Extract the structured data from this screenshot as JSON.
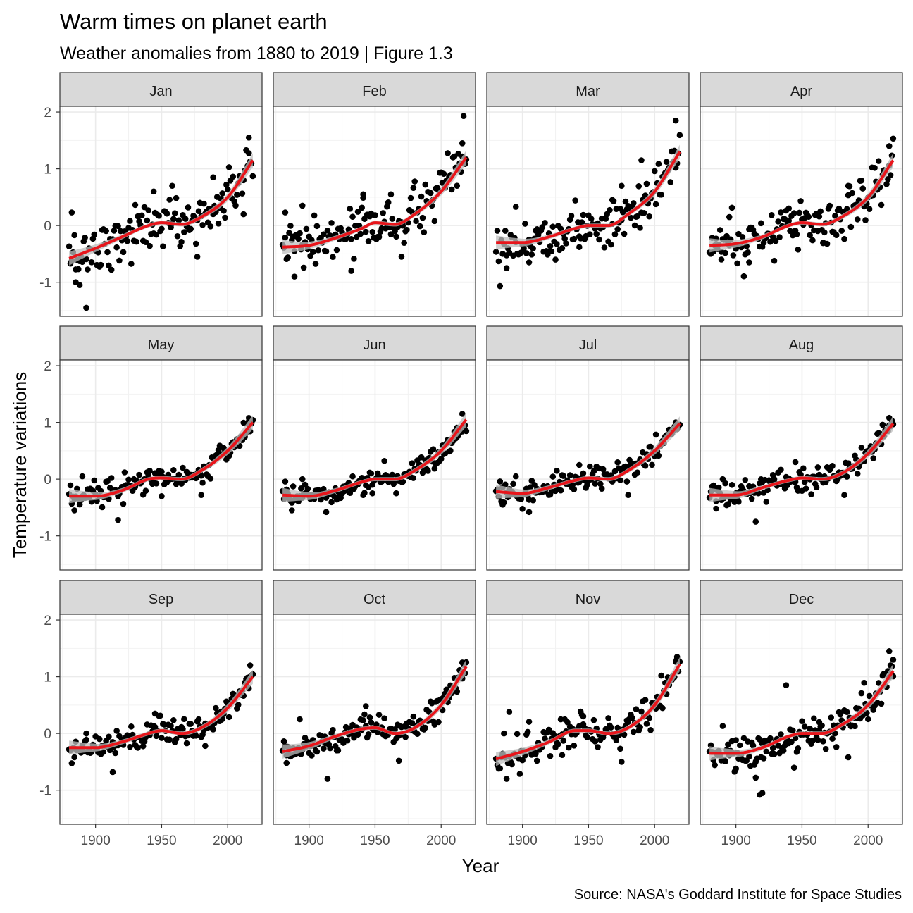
{
  "chart_data": {
    "type": "scatter",
    "title": "Warm times on planet earth",
    "subtitle": "Weather anomalies from 1880 to 2019 | Figure 1.3",
    "caption": "Source: NASA's Goddard Institute for Space Studies",
    "xlabel": "Year",
    "ylabel": "Temperature variations",
    "xlim": [
      1873,
      2026
    ],
    "ylim": [
      -1.6,
      2.1
    ],
    "x_ticks": [
      1900,
      1950,
      2000
    ],
    "y_ticks": [
      -1,
      0,
      1,
      2
    ],
    "grid": true,
    "point_color": "#000000",
    "smooth_color": "#e8151b",
    "ribbon_color": "#bdbdbd",
    "facets": [
      {
        "month": "Jan",
        "trend": [
          [
            1880,
            -0.58
          ],
          [
            1900,
            -0.4
          ],
          [
            1920,
            -0.2
          ],
          [
            1940,
            0.0
          ],
          [
            1950,
            0.05
          ],
          [
            1965,
            0.02
          ],
          [
            1980,
            0.15
          ],
          [
            2000,
            0.5
          ],
          [
            2019,
            1.15
          ]
        ],
        "extremes": [
          [
            1882,
            0.23
          ],
          [
            1885,
            -1.0
          ],
          [
            1888,
            -1.05
          ],
          [
            1893,
            -1.45
          ],
          [
            1944,
            0.6
          ],
          [
            1958,
            0.7
          ],
          [
            1977,
            -0.55
          ],
          [
            1989,
            0.85
          ],
          [
            2012,
            0.2
          ],
          [
            2016,
            1.55
          ]
        ]
      },
      {
        "month": "Feb",
        "trend": [
          [
            1880,
            -0.38
          ],
          [
            1900,
            -0.35
          ],
          [
            1920,
            -0.22
          ],
          [
            1940,
            -0.05
          ],
          [
            1950,
            0.05
          ],
          [
            1965,
            0.02
          ],
          [
            1980,
            0.2
          ],
          [
            2000,
            0.6
          ],
          [
            2019,
            1.2
          ]
        ],
        "extremes": [
          [
            1882,
            0.23
          ],
          [
            1889,
            -0.9
          ],
          [
            1895,
            0.35
          ],
          [
            1932,
            -0.8
          ],
          [
            1941,
            0.55
          ],
          [
            1962,
            0.55
          ],
          [
            1970,
            -0.55
          ],
          [
            2017,
            1.93
          ],
          [
            2016,
            1.45
          ]
        ]
      },
      {
        "month": "Mar",
        "trend": [
          [
            1880,
            -0.3
          ],
          [
            1900,
            -0.3
          ],
          [
            1920,
            -0.2
          ],
          [
            1940,
            -0.05
          ],
          [
            1950,
            0.0
          ],
          [
            1965,
            0.0
          ],
          [
            1980,
            0.2
          ],
          [
            2000,
            0.6
          ],
          [
            2019,
            1.3
          ]
        ],
        "extremes": [
          [
            1888,
            -0.75
          ],
          [
            1905,
            -0.65
          ],
          [
            1895,
            0.33
          ],
          [
            1943,
            -0.38
          ],
          [
            1968,
            0.45
          ],
          [
            1975,
            0.7
          ],
          [
            1990,
            1.15
          ],
          [
            2016,
            1.85
          ]
        ]
      },
      {
        "month": "Apr",
        "trend": [
          [
            1880,
            -0.35
          ],
          [
            1900,
            -0.32
          ],
          [
            1920,
            -0.2
          ],
          [
            1940,
            0.0
          ],
          [
            1950,
            0.05
          ],
          [
            1965,
            0.02
          ],
          [
            1980,
            0.15
          ],
          [
            2000,
            0.5
          ],
          [
            2019,
            1.15
          ]
        ],
        "extremes": [
          [
            1889,
            -0.6
          ],
          [
            1910,
            -0.65
          ],
          [
            1895,
            0.15
          ],
          [
            1940,
            0.3
          ],
          [
            1966,
            -0.3
          ],
          [
            1985,
            0.7
          ],
          [
            2016,
            1.4
          ]
        ]
      },
      {
        "month": "May",
        "trend": [
          [
            1880,
            -0.3
          ],
          [
            1900,
            -0.3
          ],
          [
            1920,
            -0.2
          ],
          [
            1940,
            0.0
          ],
          [
            1950,
            0.02
          ],
          [
            1965,
            0.0
          ],
          [
            1980,
            0.15
          ],
          [
            2000,
            0.5
          ],
          [
            2019,
            1.0
          ]
        ],
        "extremes": [
          [
            1884,
            -0.55
          ],
          [
            1917,
            -0.72
          ],
          [
            1890,
            0.05
          ],
          [
            1950,
            -0.3
          ],
          [
            1980,
            -0.28
          ],
          [
            2016,
            1.02
          ]
        ]
      },
      {
        "month": "Jun",
        "trend": [
          [
            1880,
            -0.28
          ],
          [
            1900,
            -0.3
          ],
          [
            1920,
            -0.2
          ],
          [
            1940,
            -0.05
          ],
          [
            1950,
            0.0
          ],
          [
            1965,
            0.0
          ],
          [
            1980,
            0.15
          ],
          [
            2000,
            0.5
          ],
          [
            2019,
            1.05
          ]
        ],
        "extremes": [
          [
            1887,
            -0.55
          ],
          [
            1913,
            -0.58
          ],
          [
            1895,
            0.0
          ],
          [
            1948,
            -0.25
          ],
          [
            2016,
            1.15
          ]
        ]
      },
      {
        "month": "Jul",
        "trend": [
          [
            1880,
            -0.22
          ],
          [
            1900,
            -0.25
          ],
          [
            1920,
            -0.15
          ],
          [
            1940,
            -0.02
          ],
          [
            1950,
            0.02
          ],
          [
            1965,
            0.0
          ],
          [
            1980,
            0.15
          ],
          [
            2000,
            0.5
          ],
          [
            2019,
            0.98
          ]
        ],
        "extremes": [
          [
            1885,
            -0.45
          ],
          [
            1905,
            -0.58
          ],
          [
            1895,
            0.05
          ],
          [
            1943,
            0.25
          ],
          [
            1980,
            -0.28
          ],
          [
            2016,
            1.0
          ]
        ]
      },
      {
        "month": "Aug",
        "trend": [
          [
            1880,
            -0.28
          ],
          [
            1900,
            -0.28
          ],
          [
            1920,
            -0.15
          ],
          [
            1940,
            -0.02
          ],
          [
            1950,
            0.02
          ],
          [
            1965,
            0.0
          ],
          [
            1980,
            0.1
          ],
          [
            2000,
            0.45
          ],
          [
            2019,
            0.98
          ]
        ],
        "extremes": [
          [
            1885,
            -0.52
          ],
          [
            1915,
            -0.75
          ],
          [
            1890,
            0.0
          ],
          [
            1945,
            0.3
          ],
          [
            1982,
            -0.28
          ],
          [
            2016,
            1.08
          ]
        ]
      },
      {
        "month": "Sep",
        "trend": [
          [
            1880,
            -0.25
          ],
          [
            1900,
            -0.25
          ],
          [
            1920,
            -0.15
          ],
          [
            1940,
            0.0
          ],
          [
            1950,
            0.05
          ],
          [
            1965,
            0.0
          ],
          [
            1980,
            0.1
          ],
          [
            2000,
            0.45
          ],
          [
            2019,
            1.0
          ]
        ],
        "extremes": [
          [
            1884,
            -0.42
          ],
          [
            1913,
            -0.68
          ],
          [
            1893,
            0.0
          ],
          [
            1945,
            0.35
          ],
          [
            1983,
            -0.22
          ],
          [
            2017,
            1.2
          ]
        ]
      },
      {
        "month": "Oct",
        "trend": [
          [
            1880,
            -0.32
          ],
          [
            1900,
            -0.22
          ],
          [
            1920,
            -0.05
          ],
          [
            1940,
            0.08
          ],
          [
            1950,
            0.1
          ],
          [
            1965,
            0.0
          ],
          [
            1980,
            0.1
          ],
          [
            2000,
            0.5
          ],
          [
            2019,
            1.18
          ]
        ],
        "extremes": [
          [
            1883,
            -0.52
          ],
          [
            1914,
            -0.8
          ],
          [
            1893,
            0.25
          ],
          [
            1943,
            0.48
          ],
          [
            1968,
            -0.48
          ],
          [
            2016,
            1.25
          ]
        ]
      },
      {
        "month": "Nov",
        "trend": [
          [
            1880,
            -0.45
          ],
          [
            1900,
            -0.32
          ],
          [
            1920,
            -0.15
          ],
          [
            1940,
            0.05
          ],
          [
            1950,
            0.05
          ],
          [
            1965,
            0.0
          ],
          [
            1980,
            0.1
          ],
          [
            2000,
            0.5
          ],
          [
            2019,
            1.22
          ]
        ],
        "extremes": [
          [
            1888,
            -0.8
          ],
          [
            1890,
            0.38
          ],
          [
            1930,
            -0.38
          ],
          [
            1946,
            0.3
          ],
          [
            1975,
            -0.5
          ],
          [
            2017,
            1.35
          ]
        ]
      },
      {
        "month": "Dec",
        "trend": [
          [
            1880,
            -0.35
          ],
          [
            1900,
            -0.35
          ],
          [
            1920,
            -0.25
          ],
          [
            1940,
            -0.05
          ],
          [
            1950,
            0.0
          ],
          [
            1965,
            0.0
          ],
          [
            1980,
            0.15
          ],
          [
            2000,
            0.5
          ],
          [
            2019,
            1.1
          ]
        ],
        "extremes": [
          [
            1918,
            -1.08
          ],
          [
            1920,
            -1.05
          ],
          [
            1900,
            -0.62
          ],
          [
            1915,
            -0.78
          ],
          [
            1928,
            -0.35
          ],
          [
            1938,
            0.85
          ],
          [
            1963,
            0.2
          ],
          [
            1985,
            -0.42
          ],
          [
            2016,
            1.45
          ],
          [
            2019,
            1.3
          ]
        ]
      }
    ]
  }
}
